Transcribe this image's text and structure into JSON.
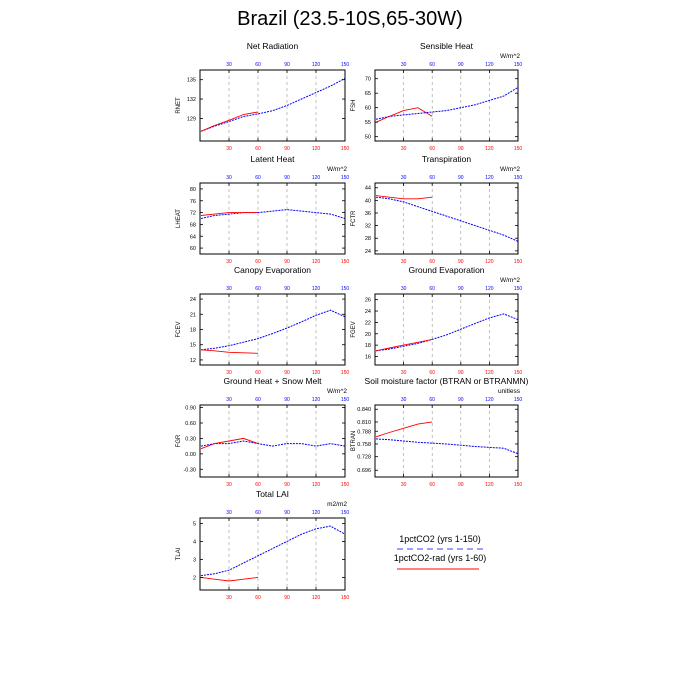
{
  "figure": {
    "title": "Brazil (23.5-10S,65-30W)",
    "legend": {
      "placement": "bottom-right",
      "entries": [
        {
          "label": "1pctCO2 (yrs 1-150)",
          "color": "#0000ff",
          "style": "dashed"
        },
        {
          "label": "1pctCO2-rad (yrs 1-60)",
          "color": "#ff0000",
          "style": "solid"
        }
      ]
    }
  },
  "colors": {
    "series_1": "#0000ff",
    "series_2": "#ff0000",
    "top_ticks": "#0000ff",
    "bottom_ticks": "#ff0000",
    "grid": "#999999"
  },
  "chart_data": [
    {
      "type": "line",
      "title": "Net Radiation",
      "unit": "",
      "ylabel": "RNET",
      "xlim": [
        0,
        150
      ],
      "ylim": [
        125.5,
        136.5
      ],
      "yticks": [
        129,
        132,
        135
      ],
      "xticks": [
        30,
        60,
        90,
        120,
        150
      ],
      "grid_x": [
        30,
        60,
        90,
        120
      ],
      "series": [
        {
          "x": [
            1,
            15,
            30,
            45,
            60,
            75,
            90,
            105,
            120,
            135,
            150
          ],
          "values": [
            127,
            127.8,
            128.5,
            129.3,
            129.7,
            130.2,
            131,
            132,
            133,
            134,
            135.2
          ]
        },
        {
          "x": [
            1,
            15,
            30,
            45,
            60
          ],
          "values": [
            127,
            127.9,
            128.7,
            129.6,
            130
          ]
        }
      ]
    },
    {
      "type": "line",
      "title": "Sensible Heat",
      "unit": "W/m^2",
      "ylabel": "FSH",
      "xlim": [
        0,
        150
      ],
      "ylim": [
        48.5,
        73
      ],
      "yticks": [
        50.0,
        55.0,
        60.0,
        65.0,
        70.0
      ],
      "xticks": [
        30,
        60,
        90,
        120,
        150
      ],
      "grid_x": [
        30,
        60,
        90,
        120
      ],
      "series": [
        {
          "x": [
            1,
            15,
            30,
            45,
            60,
            75,
            90,
            105,
            120,
            135,
            150
          ],
          "values": [
            56,
            57,
            57.5,
            58,
            58.5,
            59,
            60,
            61,
            62.5,
            64,
            67
          ]
        },
        {
          "x": [
            1,
            15,
            30,
            45,
            60
          ],
          "values": [
            55,
            57,
            59,
            60,
            57
          ]
        }
      ]
    },
    {
      "type": "line",
      "title": "Latent Heat",
      "unit": "W/m^2",
      "ylabel": "LHEAT",
      "xlim": [
        0,
        150
      ],
      "ylim": [
        58,
        82
      ],
      "yticks": [
        60.0,
        64.0,
        68.0,
        72.0,
        76.0,
        80.0
      ],
      "xticks": [
        30,
        60,
        90,
        120,
        150
      ],
      "grid_x": [
        30,
        60,
        90,
        120
      ],
      "series": [
        {
          "x": [
            1,
            15,
            30,
            45,
            60,
            75,
            90,
            105,
            120,
            135,
            150
          ],
          "values": [
            70,
            71,
            71.5,
            72,
            72,
            72.5,
            73,
            72.5,
            72,
            71.5,
            70
          ]
        },
        {
          "x": [
            1,
            15,
            30,
            45,
            60
          ],
          "values": [
            71,
            71.5,
            72,
            72,
            72
          ]
        }
      ]
    },
    {
      "type": "line",
      "title": "Transpiration",
      "unit": "W/m^2",
      "ylabel": "FCTR",
      "xlim": [
        0,
        150
      ],
      "ylim": [
        23,
        45.5
      ],
      "yticks": [
        24.0,
        28.0,
        32.0,
        36.0,
        40.0,
        44.0
      ],
      "xticks": [
        30,
        60,
        90,
        120,
        150
      ],
      "grid_x": [
        30,
        60,
        90,
        120
      ],
      "series": [
        {
          "x": [
            1,
            15,
            30,
            45,
            60,
            75,
            90,
            105,
            120,
            135,
            150
          ],
          "values": [
            41,
            40.5,
            39.5,
            38,
            36.5,
            35,
            33.5,
            32,
            30.5,
            29,
            27
          ]
        },
        {
          "x": [
            1,
            15,
            30,
            45,
            60
          ],
          "values": [
            41.5,
            41,
            40.5,
            40.5,
            41
          ]
        }
      ]
    },
    {
      "type": "line",
      "title": "Canopy Evaporation",
      "unit": "",
      "ylabel": "FCEV",
      "xlim": [
        0,
        150
      ],
      "ylim": [
        11,
        25
      ],
      "yticks": [
        12,
        15,
        18,
        21,
        24
      ],
      "xticks": [
        30,
        60,
        90,
        120,
        150
      ],
      "grid_x": [
        30,
        60,
        90,
        120
      ],
      "series": [
        {
          "x": [
            1,
            15,
            30,
            45,
            60,
            75,
            90,
            105,
            120,
            135,
            150
          ],
          "values": [
            14,
            14.3,
            14.8,
            15.5,
            16.2,
            17.2,
            18.3,
            19.5,
            20.8,
            21.8,
            20.5
          ]
        },
        {
          "x": [
            1,
            15,
            30,
            45,
            60
          ],
          "values": [
            14,
            13.8,
            13.5,
            13.4,
            13.3
          ]
        }
      ]
    },
    {
      "type": "line",
      "title": "Ground Evaporation",
      "unit": "W/m^2",
      "ylabel": "FGEV",
      "xlim": [
        0,
        150
      ],
      "ylim": [
        14.5,
        27
      ],
      "yticks": [
        16.0,
        18.0,
        20.0,
        22.0,
        24.0,
        26.0
      ],
      "xticks": [
        30,
        60,
        90,
        120,
        150
      ],
      "grid_x": [
        30,
        60,
        90,
        120
      ],
      "series": [
        {
          "x": [
            1,
            15,
            30,
            45,
            60,
            75,
            90,
            105,
            120,
            135,
            150
          ],
          "values": [
            17,
            17.3,
            17.8,
            18.3,
            19,
            19.8,
            20.8,
            21.8,
            22.8,
            23.5,
            22.5
          ]
        },
        {
          "x": [
            1,
            15,
            30,
            45,
            60
          ],
          "values": [
            17,
            17.5,
            18,
            18.5,
            19
          ]
        }
      ]
    },
    {
      "type": "line",
      "title": "Ground Heat + Snow Melt",
      "unit": "W/m^2",
      "ylabel": "FGR",
      "xlim": [
        0,
        150
      ],
      "ylim": [
        -0.45,
        0.95
      ],
      "yticks": [
        -0.3,
        0.0,
        0.3,
        0.6,
        0.9
      ],
      "ytick_labels": [
        "-0.30",
        "0.00",
        "0.30",
        "0.60",
        "0.90"
      ],
      "xticks": [
        30,
        60,
        90,
        120,
        150
      ],
      "grid_x": [
        30,
        60,
        90,
        120
      ],
      "series": [
        {
          "x": [
            1,
            15,
            30,
            45,
            60,
            75,
            90,
            105,
            120,
            135,
            150
          ],
          "values": [
            0.15,
            0.2,
            0.2,
            0.25,
            0.2,
            0.15,
            0.2,
            0.2,
            0.15,
            0.2,
            0.15
          ]
        },
        {
          "x": [
            1,
            15,
            30,
            45,
            60
          ],
          "values": [
            0.1,
            0.2,
            0.25,
            0.3,
            0.2
          ]
        }
      ]
    },
    {
      "type": "line",
      "title": "Soil moisture factor (BTRAN or BTRANMN)",
      "unit": "unitless",
      "ylabel": "BTRAN",
      "xlim": [
        0,
        150
      ],
      "ylim": [
        0.68,
        0.85
      ],
      "yticks": [
        0.696,
        0.728,
        0.758,
        0.788,
        0.81,
        0.84
      ],
      "ytick_labels": [
        "0.696",
        "0.728",
        "0.758",
        "0.788",
        "0.810",
        "0.840"
      ],
      "xticks": [
        30,
        60,
        90,
        120,
        150
      ],
      "grid_x": [
        30,
        60,
        90,
        120
      ],
      "series": [
        {
          "x": [
            1,
            15,
            30,
            45,
            60,
            75,
            90,
            105,
            120,
            135,
            150
          ],
          "values": [
            0.77,
            0.768,
            0.765,
            0.762,
            0.76,
            0.758,
            0.755,
            0.752,
            0.75,
            0.748,
            0.735
          ]
        },
        {
          "x": [
            1,
            15,
            30,
            45,
            60
          ],
          "values": [
            0.775,
            0.785,
            0.795,
            0.805,
            0.81
          ]
        }
      ]
    },
    {
      "type": "line",
      "title": "Total LAI",
      "unit": "m2/m2",
      "ylabel": "TLAI",
      "xlim": [
        0,
        150
      ],
      "ylim": [
        1.3,
        5.3
      ],
      "yticks": [
        2.0,
        3.0,
        4.0,
        5.0
      ],
      "xticks": [
        30,
        60,
        90,
        120,
        150
      ],
      "grid_x": [
        30,
        60,
        90,
        120
      ],
      "series": [
        {
          "x": [
            1,
            15,
            30,
            45,
            60,
            75,
            90,
            105,
            120,
            135,
            150
          ],
          "values": [
            2.1,
            2.2,
            2.4,
            2.8,
            3.2,
            3.6,
            4.0,
            4.4,
            4.7,
            4.85,
            4.4
          ]
        },
        {
          "x": [
            1,
            15,
            30,
            45,
            60
          ],
          "values": [
            2.0,
            1.9,
            1.8,
            1.9,
            2.0
          ]
        }
      ]
    }
  ]
}
